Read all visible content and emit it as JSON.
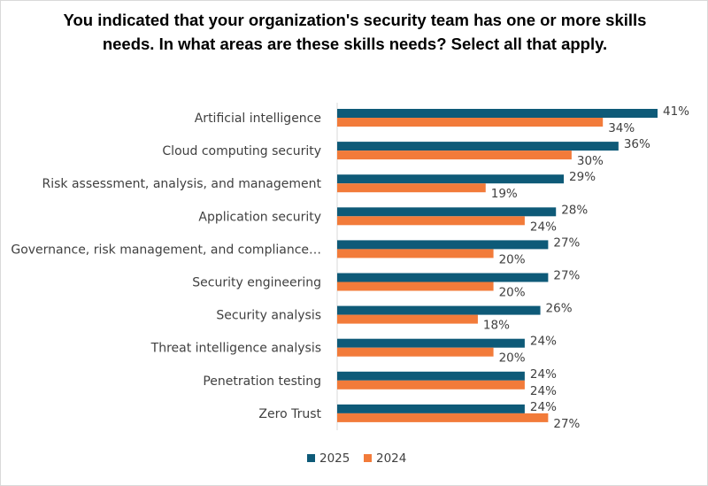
{
  "chart_data": {
    "type": "bar",
    "orientation": "horizontal",
    "title": "You indicated that your organization's security team has one or more skills needs. In what areas are these skills needs? Select all that apply.",
    "categories": [
      "Artificial intelligence",
      "Cloud computing security",
      "Risk assessment, analysis, and management",
      "Application security",
      "Governance, risk management, and compliance…",
      "Security engineering",
      "Security analysis",
      "Threat intelligence analysis",
      "Penetration testing",
      "Zero Trust"
    ],
    "series": [
      {
        "name": "2025",
        "color": "#0e5a78",
        "values": [
          41,
          36,
          29,
          28,
          27,
          27,
          26,
          24,
          24,
          24
        ]
      },
      {
        "name": "2024",
        "color": "#f27b3a",
        "values": [
          34,
          30,
          19,
          24,
          20,
          20,
          18,
          20,
          24,
          27
        ]
      }
    ],
    "value_suffix": "%",
    "xlim": [
      0,
      41
    ],
    "grid": false,
    "legend_position": "bottom"
  }
}
